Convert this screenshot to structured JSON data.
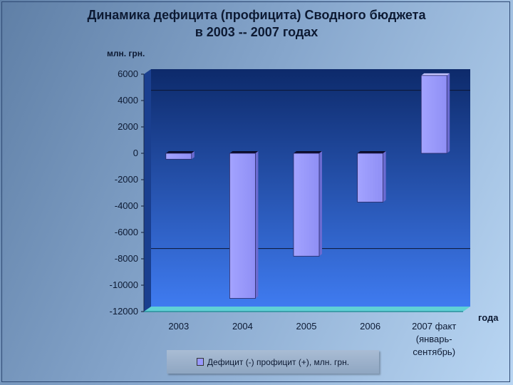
{
  "title_line1": "Динамика дефицита (профицита) Сводного бюджета",
  "title_line2": "в 2003 -- 2007 годах",
  "y_unit": "млн. грн.",
  "x_unit": "года",
  "colors": {
    "bar": "#9999ff",
    "plot_top": "#0d2a6b",
    "plot_bottom": "#3f7bf0",
    "floor": "#5fd1d6"
  },
  "chart_data": {
    "type": "bar",
    "categories": [
      [
        "2003"
      ],
      [
        "2004"
      ],
      [
        "2005"
      ],
      [
        "2006"
      ],
      [
        "2007 факт",
        "(январь-",
        "сентябрь)"
      ]
    ],
    "series": [
      {
        "name": "Дефицит (-)  профицит (+), млн. грн.",
        "values": [
          -450,
          -11000,
          -7800,
          -3700,
          5900
        ]
      }
    ],
    "ylim": [
      -12000,
      6000
    ],
    "yticks": [
      6000,
      4000,
      2000,
      0,
      -2000,
      -4000,
      -6000,
      -8000,
      -10000,
      -12000
    ],
    "legend_position": "bottom"
  }
}
